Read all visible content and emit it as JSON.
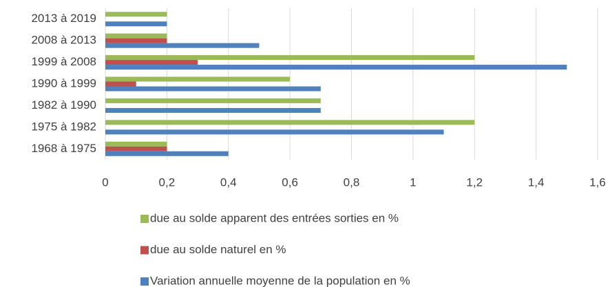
{
  "chart_data": {
    "type": "bar",
    "orientation": "horizontal",
    "categories": [
      "2013 à 2019",
      "2008 à 2013",
      "1999 à 2008",
      "1990 à 1999",
      "1982 à 1990",
      "1975 à 1982",
      "1968 à 1975"
    ],
    "series": [
      {
        "name": "due au solde apparent des entrées sorties en %",
        "color": "#9bbb59",
        "values": [
          0.2,
          0.2,
          1.2,
          0.6,
          0.7,
          1.2,
          0.2
        ]
      },
      {
        "name": "due au solde naturel en %",
        "color": "#c0504d",
        "values": [
          0,
          0.2,
          0.3,
          0.1,
          0,
          0,
          0.2
        ]
      },
      {
        "name": "Variation annuelle moyenne de la population en %",
        "color": "#4f81bd",
        "values": [
          0.2,
          0.5,
          1.5,
          0.7,
          0.7,
          1.1,
          0.4
        ]
      }
    ],
    "xlim": [
      0,
      1.6
    ],
    "xticks": [
      0,
      {
        "value": 0.2,
        "label": "0,2"
      },
      {
        "value": 0.4,
        "label": "0,4"
      },
      {
        "value": 0.6,
        "label": "0,6"
      },
      {
        "value": 0.8,
        "label": "0,8"
      },
      1,
      {
        "value": 1.2,
        "label": "1,2"
      },
      {
        "value": 1.4,
        "label": "1,4"
      },
      {
        "value": 1.6,
        "label": "1,6"
      }
    ],
    "grid": true,
    "legend": "bottom"
  }
}
